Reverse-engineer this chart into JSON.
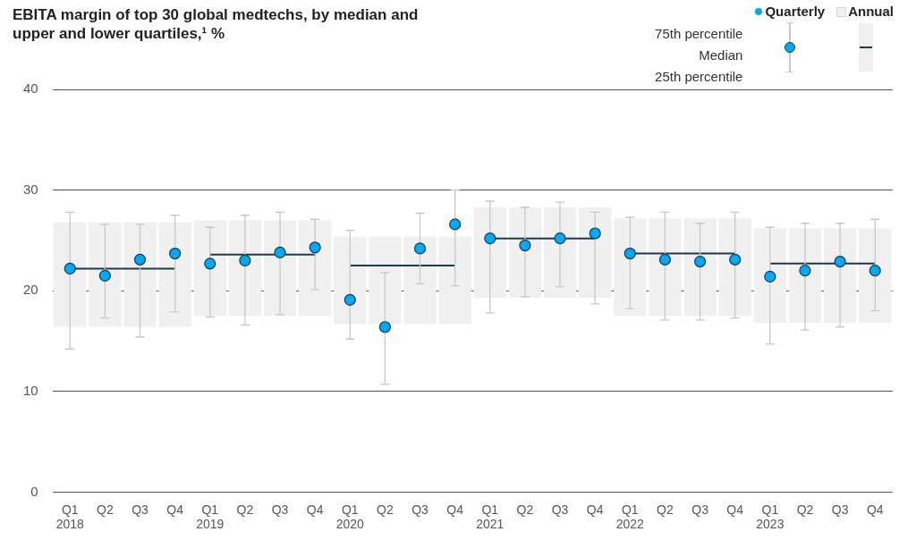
{
  "chart_data": {
    "type": "scatter",
    "title": "EBITA margin of top 30 global medtechs, by median and upper and lower quartiles,¹ %",
    "categories": [
      "Q1\n2018",
      "Q2",
      "Q3",
      "Q4",
      "Q1\n2019",
      "Q2",
      "Q3",
      "Q4",
      "Q1\n2020",
      "Q2",
      "Q3",
      "Q4",
      "Q1\n2021",
      "Q2",
      "Q3",
      "Q4",
      "Q1\n2022",
      "Q2",
      "Q3",
      "Q4",
      "Q1\n2023",
      "Q2",
      "Q3",
      "Q4"
    ],
    "series": [
      {
        "name": "Annual",
        "type": "bar",
        "color": "#f0f0f0",
        "base": [
          16.4,
          16.4,
          16.4,
          16.4,
          17.5,
          17.5,
          17.5,
          17.5,
          16.7,
          16.7,
          16.7,
          16.7,
          19.3,
          19.3,
          19.3,
          19.3,
          17.5,
          17.5,
          17.5,
          17.5,
          16.8,
          16.8,
          16.8,
          16.8
        ],
        "values": [
          10.4,
          10.4,
          10.4,
          10.4,
          9.5,
          9.5,
          9.5,
          9.5,
          8.7,
          8.7,
          8.7,
          8.7,
          9.0,
          9.0,
          9.0,
          9.0,
          9.7,
          9.7,
          9.7,
          9.7,
          9.4,
          9.4,
          9.4,
          9.4
        ]
      },
      {
        "type": "line",
        "marker": "none",
        "color": "#1f3a4d",
        "values": [
          22.2,
          22.2,
          22.2,
          22.2,
          23.6,
          23.6,
          23.6,
          23.6,
          22.5,
          22.5,
          22.5,
          22.5,
          25.2,
          25.2,
          25.2,
          25.2,
          23.7,
          23.7,
          23.7,
          23.7,
          22.7,
          22.7,
          22.7,
          22.7
        ]
      },
      {
        "name": "Quarterly",
        "color": "#00a9f4",
        "values": [
          22.2,
          21.5,
          23.1,
          23.7,
          22.7,
          23.0,
          23.8,
          24.3,
          19.1,
          16.4,
          24.2,
          26.6,
          25.2,
          24.5,
          25.2,
          25.7,
          23.7,
          23.1,
          22.9,
          23.1,
          21.4,
          22.0,
          22.9,
          22.0
        ],
        "errors": [
          [
            14.2,
            27.8
          ],
          [
            17.3,
            26.6
          ],
          [
            15.4,
            26.6
          ],
          [
            17.9,
            27.5
          ],
          [
            17.4,
            26.3
          ],
          [
            16.6,
            27.5
          ],
          [
            17.6,
            27.8
          ],
          [
            20.1,
            27.1
          ],
          [
            15.2,
            26.0
          ],
          [
            10.7,
            21.8
          ],
          [
            20.7,
            27.7
          ],
          [
            20.5,
            30.0
          ],
          [
            17.8,
            28.9
          ],
          [
            19.4,
            28.3
          ],
          [
            20.4,
            28.8
          ],
          [
            18.7,
            27.8
          ],
          [
            18.2,
            27.3
          ],
          [
            17.1,
            27.8
          ],
          [
            17.1,
            26.7
          ],
          [
            17.3,
            27.8
          ],
          [
            14.7,
            26.3
          ],
          [
            16.1,
            26.7
          ],
          [
            16.4,
            26.7
          ],
          [
            18.0,
            27.1
          ]
        ]
      }
    ],
    "ylim": [
      0,
      40
    ],
    "yticks": [
      0,
      10,
      20,
      30,
      40
    ],
    "grid": "y",
    "legend": "top right",
    "marker": "circle",
    "annotations": [
      "75th percentile",
      "Median",
      "25th percentile"
    ]
  }
}
